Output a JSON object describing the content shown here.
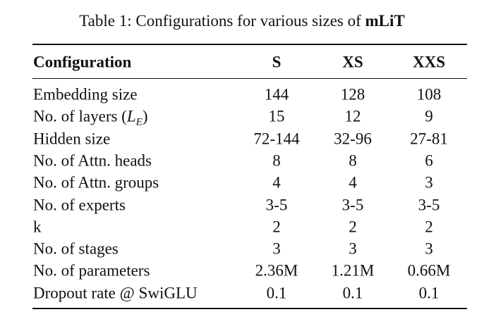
{
  "caption": {
    "text": "Table 1: Configurations for various sizes of",
    "emphasis": "mLiT"
  },
  "table": {
    "header": [
      "Configuration",
      "S",
      "XS",
      "XXS"
    ],
    "rows": [
      {
        "label": "Embedding size",
        "values": [
          "144",
          "128",
          "108"
        ]
      },
      {
        "label": "No. of layers (",
        "label_math": "L",
        "label_sub": "E",
        "label_end": ")",
        "values": [
          "15",
          "12",
          "9"
        ]
      },
      {
        "label": "Hidden size",
        "values": [
          "72-144",
          "32-96",
          "27-81"
        ]
      },
      {
        "label": "No. of Attn. heads",
        "values": [
          "8",
          "8",
          "6"
        ]
      },
      {
        "label": "No. of Attn. groups",
        "values": [
          "4",
          "4",
          "3"
        ]
      },
      {
        "label": "No. of experts",
        "values": [
          "3-5",
          "3-5",
          "3-5"
        ]
      },
      {
        "label": "k",
        "values": [
          "2",
          "2",
          "2"
        ]
      },
      {
        "label": "No. of stages",
        "values": [
          "3",
          "3",
          "3"
        ]
      },
      {
        "label": "No. of parameters",
        "values": [
          "2.36M",
          "1.21M",
          "0.66M"
        ]
      },
      {
        "label": "Dropout rate @ SwiGLU",
        "values": [
          "0.1",
          "0.1",
          "0.1"
        ]
      }
    ]
  }
}
